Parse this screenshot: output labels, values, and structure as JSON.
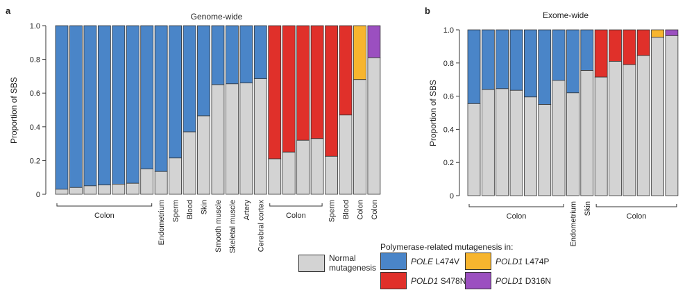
{
  "colors": {
    "normal": "#d3d3d3",
    "pole_l474v": "#4a85c8",
    "pold1_s478n": "#e0302a",
    "pold1_l474p": "#f7b52e",
    "pold1_d316n": "#9b4fc0"
  },
  "chart_data": [
    {
      "panel_label": "a",
      "title": "Genome-wide",
      "type": "bar",
      "stacked": true,
      "ylabel": "Proportion of SBS",
      "ylim": [
        0,
        1.0
      ],
      "yticks": [
        "0",
        "0.2",
        "0.4",
        "0.6",
        "0.8",
        "1.0"
      ],
      "bars": [
        {
          "category": "",
          "normal": 0.03,
          "mut": "pole_l474v"
        },
        {
          "category": "",
          "normal": 0.04,
          "mut": "pole_l474v"
        },
        {
          "category": "",
          "normal": 0.05,
          "mut": "pole_l474v"
        },
        {
          "category": "",
          "normal": 0.055,
          "mut": "pole_l474v"
        },
        {
          "category": "",
          "normal": 0.06,
          "mut": "pole_l474v"
        },
        {
          "category": "",
          "normal": 0.065,
          "mut": "pole_l474v"
        },
        {
          "category": "",
          "normal": 0.15,
          "mut": "pole_l474v"
        },
        {
          "category": "Endometrium",
          "normal": 0.135,
          "mut": "pole_l474v"
        },
        {
          "category": "Sperm",
          "normal": 0.215,
          "mut": "pole_l474v"
        },
        {
          "category": "Blood",
          "normal": 0.37,
          "mut": "pole_l474v"
        },
        {
          "category": "Skin",
          "normal": 0.465,
          "mut": "pole_l474v"
        },
        {
          "category": "Smooth muscle",
          "normal": 0.65,
          "mut": "pole_l474v"
        },
        {
          "category": "Skeletal muscle",
          "normal": 0.655,
          "mut": "pole_l474v"
        },
        {
          "category": "Artery",
          "normal": 0.66,
          "mut": "pole_l474v"
        },
        {
          "category": "Cerebral cortex",
          "normal": 0.685,
          "mut": "pole_l474v"
        },
        {
          "category": "",
          "normal": 0.21,
          "mut": "pold1_s478n"
        },
        {
          "category": "",
          "normal": 0.25,
          "mut": "pold1_s478n"
        },
        {
          "category": "",
          "normal": 0.32,
          "mut": "pold1_s478n"
        },
        {
          "category": "",
          "normal": 0.33,
          "mut": "pold1_s478n"
        },
        {
          "category": "Sperm",
          "normal": 0.225,
          "mut": "pold1_s478n"
        },
        {
          "category": "Blood",
          "normal": 0.47,
          "mut": "pold1_s478n"
        },
        {
          "category": "Colon",
          "normal": 0.68,
          "mut": "pold1_l474p"
        },
        {
          "category": "Colon",
          "normal": 0.81,
          "mut": "pold1_d316n"
        }
      ],
      "groups": [
        {
          "label": "Colon",
          "first": 0,
          "last": 6
        },
        {
          "label": "Colon",
          "first": 15,
          "last": 18
        }
      ]
    },
    {
      "panel_label": "b",
      "title": "Exome-wide",
      "type": "bar",
      "stacked": true,
      "ylabel": "Proportion of SBS",
      "ylim": [
        0,
        1.0
      ],
      "yticks": [
        "0",
        "0.2",
        "0.4",
        "0.6",
        "0.8",
        "1.0"
      ],
      "bars": [
        {
          "category": "",
          "normal": 0.555,
          "mut": "pole_l474v"
        },
        {
          "category": "",
          "normal": 0.64,
          "mut": "pole_l474v"
        },
        {
          "category": "",
          "normal": 0.645,
          "mut": "pole_l474v"
        },
        {
          "category": "",
          "normal": 0.635,
          "mut": "pole_l474v"
        },
        {
          "category": "",
          "normal": 0.595,
          "mut": "pole_l474v"
        },
        {
          "category": "",
          "normal": 0.55,
          "mut": "pole_l474v"
        },
        {
          "category": "",
          "normal": 0.695,
          "mut": "pole_l474v"
        },
        {
          "category": "Endometrium",
          "normal": 0.62,
          "mut": "pole_l474v"
        },
        {
          "category": "Skin",
          "normal": 0.755,
          "mut": "pole_l474v"
        },
        {
          "category": "",
          "normal": 0.715,
          "mut": "pold1_s478n"
        },
        {
          "category": "",
          "normal": 0.81,
          "mut": "pold1_s478n"
        },
        {
          "category": "",
          "normal": 0.79,
          "mut": "pold1_s478n"
        },
        {
          "category": "",
          "normal": 0.845,
          "mut": "pold1_s478n"
        },
        {
          "category": "",
          "normal": 0.955,
          "mut": "pold1_l474p"
        },
        {
          "category": "",
          "normal": 0.965,
          "mut": "pold1_d316n"
        }
      ],
      "groups": [
        {
          "label": "Colon",
          "first": 0,
          "last": 6
        },
        {
          "label": "Colon",
          "first": 9,
          "last": 14
        }
      ]
    }
  ],
  "legend": {
    "header": "Polymerase-related mutagenesis in:",
    "normal_line1": "Normal",
    "normal_line2": "mutagenesis",
    "pole_gene": "POLE",
    "pole_variant": " L474V",
    "pold1_s478n_gene": "POLD1",
    "pold1_s478n_variant": " S478N",
    "pold1_l474p_gene": "POLD1",
    "pold1_l474p_variant": " L474P",
    "pold1_d316n_gene": "POLD1",
    "pold1_d316n_variant": " D316N"
  }
}
